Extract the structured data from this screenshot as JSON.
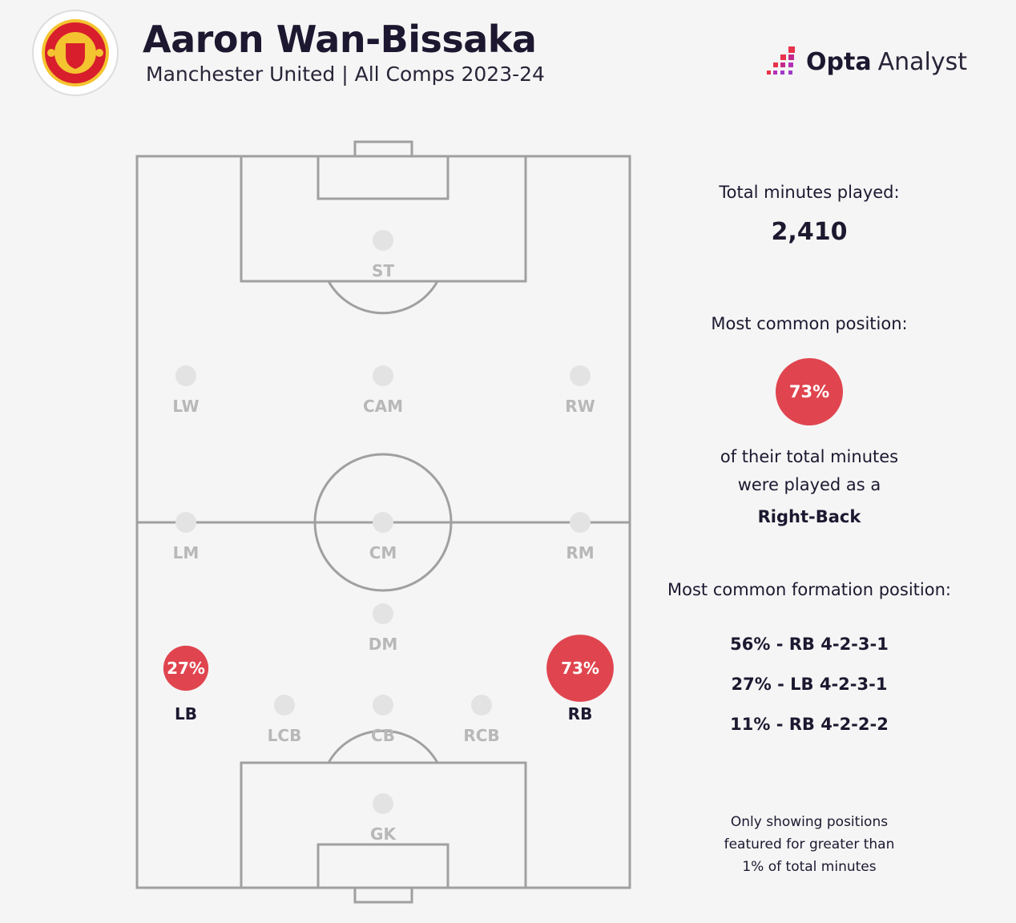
{
  "header": {
    "title": "Aaron Wan-Bissaka",
    "subtitle": "Manchester United | All Comps 2023-24",
    "club_crest": "Manchester United",
    "brand_bold": "Opta",
    "brand_light": "Analyst"
  },
  "colors": {
    "accent": "#e0454f",
    "text": "#1d1830",
    "pitch_line": "#a0a0a0",
    "inactive_dot": "#e3e3e3",
    "inactive_label": "#b8b8b8",
    "background": "#f5f5f5"
  },
  "positions": [
    {
      "code": "ST",
      "label": "ST",
      "share": null
    },
    {
      "code": "LW",
      "label": "LW",
      "share": null
    },
    {
      "code": "CAM",
      "label": "CAM",
      "share": null
    },
    {
      "code": "RW",
      "label": "RW",
      "share": null
    },
    {
      "code": "LM",
      "label": "LM",
      "share": null
    },
    {
      "code": "CM",
      "label": "CM",
      "share": null
    },
    {
      "code": "RM",
      "label": "RM",
      "share": null
    },
    {
      "code": "DM",
      "label": "DM",
      "share": null
    },
    {
      "code": "LB",
      "label": "LB",
      "share": "27%",
      "value": 27
    },
    {
      "code": "RB",
      "label": "RB",
      "share": "73%",
      "value": 73
    },
    {
      "code": "LCB",
      "label": "LCB",
      "share": null
    },
    {
      "code": "CB",
      "label": "CB",
      "share": null
    },
    {
      "code": "RCB",
      "label": "RCB",
      "share": null
    },
    {
      "code": "GK",
      "label": "GK",
      "share": null
    }
  ],
  "stats": {
    "minutes_label": "Total minutes played:",
    "minutes_value": "2,410",
    "common_label": "Most common position:",
    "common_share": "73%",
    "common_text_1": "of their total minutes",
    "common_text_2": "were played as a",
    "common_position": "Right-Back",
    "formation_label": "Most common formation position:",
    "formations": [
      "56% - RB 4-2-3-1",
      "27% - LB 4-2-3-1",
      "11% - RB 4-2-2-2"
    ],
    "note": [
      "Only showing positions",
      "featured for greater than",
      "1% of total minutes"
    ]
  }
}
